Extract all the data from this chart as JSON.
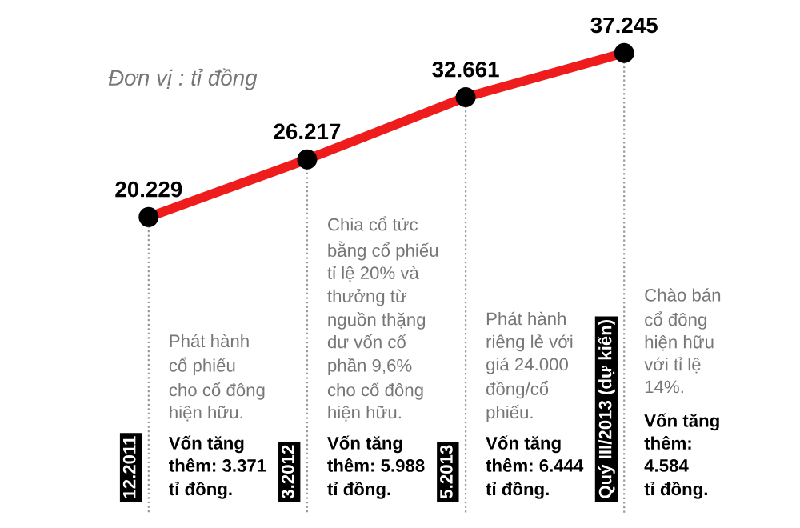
{
  "chart_data": {
    "type": "line",
    "categories": [
      "12.2011",
      "3.2012",
      "5.2013",
      "Quý III/2013 (dự kiến)"
    ],
    "series": [
      {
        "color": "#ee1c1c",
        "values": [
          20229,
          26217,
          32661,
          37245
        ],
        "value_labels": [
          "20.229",
          "26.217",
          "32.661",
          "37.245"
        ]
      }
    ],
    "marker": "circle",
    "line_style": "solid",
    "annotations": [
      "Đơn vị : tỉ đồng",
      "Phát hành\ncổ phiếu\ncho cổ đông\nhiện hữu.",
      "Vốn tăng\nthêm: 3.371\ntỉ đồng.",
      "Chia cổ tức\nbằng cổ phiếu\ntỉ lệ 20% và\nthưởng từ\nnguồn thặng\ndư vốn cổ\nphần 9,6%\ncho cổ đông\nhiện hữu.",
      "Vốn tăng\nthêm: 5.988\ntỉ đồng.",
      "Phát hành\nriêng lẻ với\ngiá 24.000\nđồng/cổ\nphiếu.",
      "Vốn tăng\nthêm: 6.444\ntỉ đồng.",
      "Chào bán\ncổ đông\nhiện hữu\nvới tỉ lệ\n14%.",
      "Vốn tăng\nthêm:\n4.584\ntỉ đồng."
    ]
  }
}
